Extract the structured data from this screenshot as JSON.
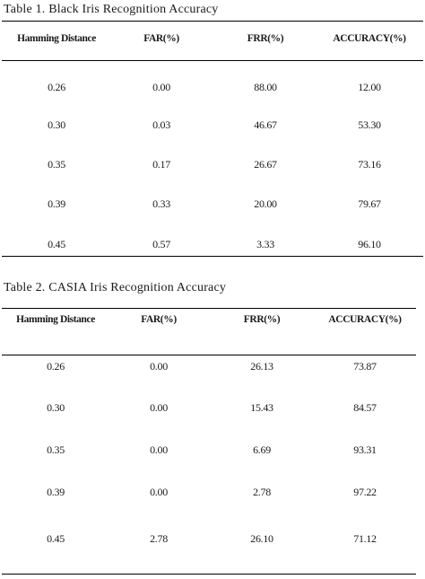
{
  "tables": [
    {
      "caption": "Table 1.  Black  Iris  Recognition Accuracy",
      "headers": [
        "Hamming Distance",
        "FAR(%)",
        "FRR(%)",
        "ACCURACY(%)"
      ],
      "rows": [
        [
          "0.26",
          "0.00",
          "88.00",
          "12.00"
        ],
        [
          "0.30",
          "0.03",
          "46.67",
          "53.30"
        ],
        [
          "0.35",
          "0.17",
          "26.67",
          "73.16"
        ],
        [
          "0.39",
          "0.33",
          "20.00",
          "79.67"
        ],
        [
          "0.45",
          "0.57",
          "3.33",
          "96.10"
        ]
      ]
    },
    {
      "caption": "Table 2. CASIA  Iris Recognition Accuracy",
      "headers": [
        "Hamming Distance",
        "FAR(%)",
        "FRR(%)",
        "ACCURACY(%)"
      ],
      "rows": [
        [
          "0.26",
          "0.00",
          "26.13",
          "73.87"
        ],
        [
          "0.30",
          "0.00",
          "15.43",
          "84.57"
        ],
        [
          "0.35",
          "0.00",
          "6.69",
          "93.31"
        ],
        [
          "0.39",
          "0.00",
          "2.78",
          "97.22"
        ],
        [
          "0.45",
          "2.78",
          "26.10",
          "71.12"
        ]
      ]
    }
  ]
}
